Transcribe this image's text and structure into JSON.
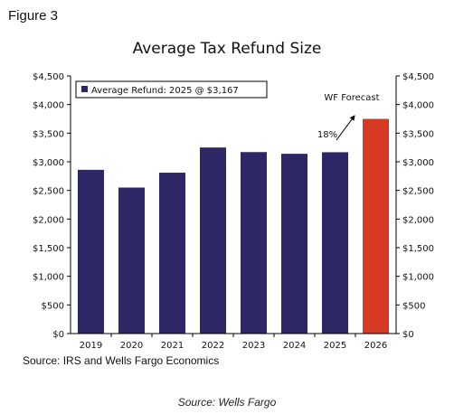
{
  "figure_label": "Figure 3",
  "source": "Source: IRS and Wells Fargo Economics",
  "credit": "Source: Wells Fargo",
  "colors": {
    "bar": "#2e2766",
    "forecast": "#d63a22",
    "axis": "#000000"
  },
  "chart_data": {
    "type": "bar",
    "title": "Average Tax Refund Size",
    "categories": [
      "2019",
      "2020",
      "2021",
      "2022",
      "2023",
      "2024",
      "2025",
      "2026"
    ],
    "values": [
      2860,
      2550,
      2810,
      3250,
      3170,
      3140,
      3167,
      3750
    ],
    "forecast_index": 7,
    "ylim": [
      0,
      4500
    ],
    "yticks": [
      0,
      500,
      1000,
      1500,
      2000,
      2500,
      3000,
      3500,
      4000,
      4500
    ],
    "ytick_labels": [
      "$0",
      "$500",
      "$1,000",
      "$1,500",
      "$2,000",
      "$2,500",
      "$3,000",
      "$3,500",
      "$4,000",
      "$4,500"
    ],
    "secondary_axis": true,
    "grid": false,
    "legend": {
      "label": "Average Refund: 2025 @ $3,167",
      "placement": "top-left"
    },
    "annotations": {
      "forecast_label": "WF Forecast",
      "growth_label": "18%"
    }
  }
}
